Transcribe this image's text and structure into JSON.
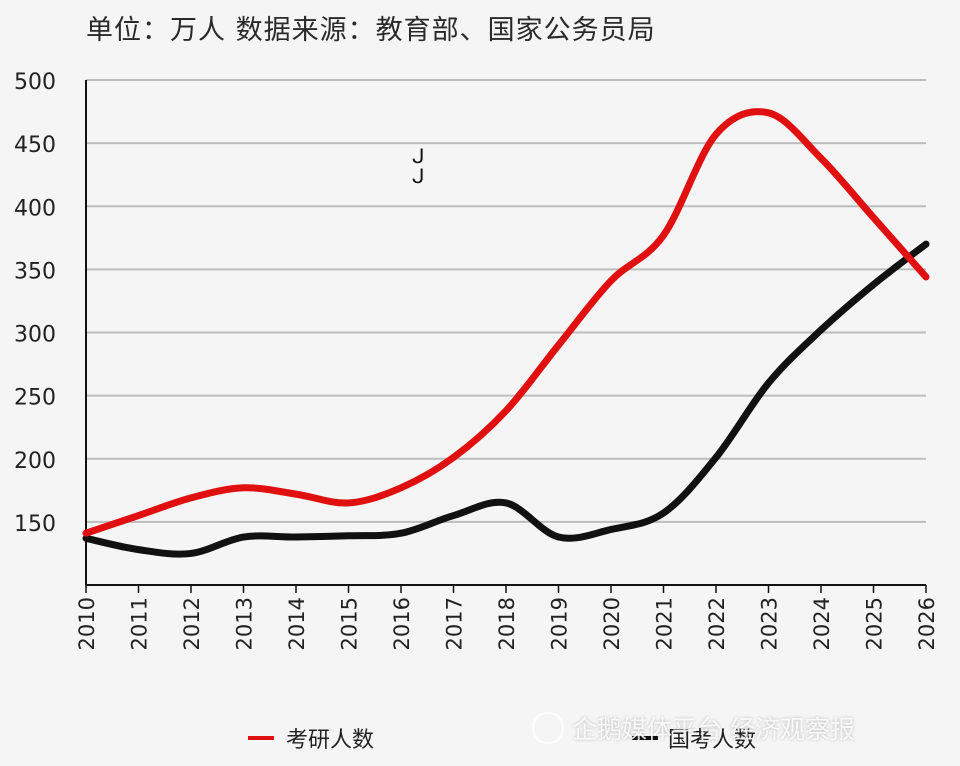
{
  "subtitle": "单位：万人   数据来源：教育部、国家公务员局",
  "watermark": "企鹅媒体平台 经济观察报",
  "chart_data": {
    "type": "line",
    "x": [
      "2010",
      "2011",
      "2012",
      "2013",
      "2014",
      "2015",
      "2016",
      "2017",
      "2018",
      "2019",
      "2020",
      "2021",
      "2022",
      "2023",
      "2024",
      "2025",
      "2026"
    ],
    "ylim": [
      100,
      500
    ],
    "yticks": [
      150,
      200,
      250,
      300,
      350,
      400,
      450,
      500
    ],
    "grid": true,
    "legend_position": "bottom",
    "series": [
      {
        "name": "考研人数",
        "color": "#e01010",
        "values": [
          141,
          155,
          169,
          177,
          172,
          165,
          177,
          201,
          238,
          290,
          341,
          377,
          457,
          474,
          438,
          391,
          344
        ]
      },
      {
        "name": "国考人数",
        "color": "#111111",
        "values": [
          137,
          128,
          125,
          138,
          138,
          139,
          141,
          155,
          165,
          138,
          144,
          157,
          201,
          260,
          302,
          338,
          370
        ]
      }
    ]
  }
}
